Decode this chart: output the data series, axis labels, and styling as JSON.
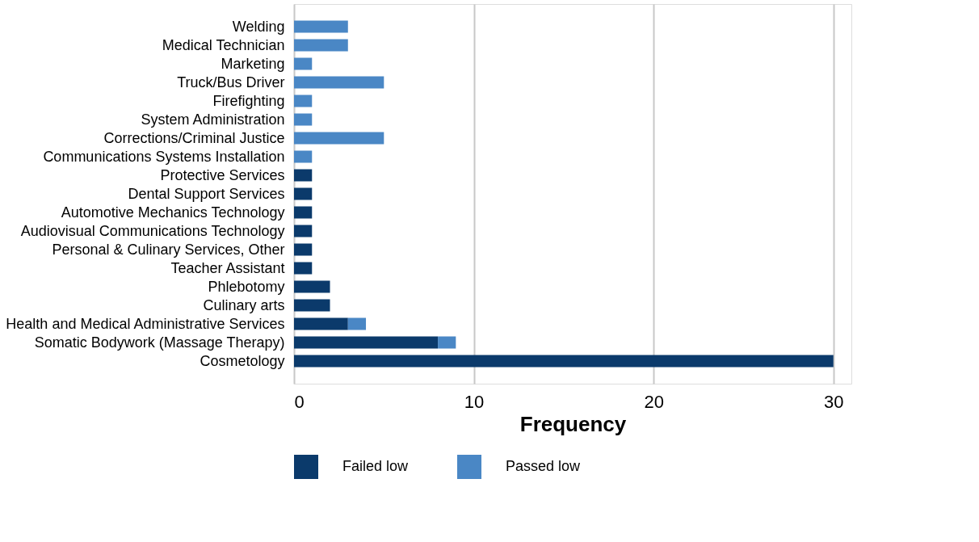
{
  "chart_data": {
    "type": "bar",
    "orientation": "horizontal",
    "stacked": true,
    "xlabel": "Frequency",
    "categories": [
      "Welding",
      "Medical Technician",
      "Marketing",
      "Truck/Bus Driver",
      "Firefighting",
      "System Administration",
      "Corrections/Criminal Justice",
      "Communications Systems Installation",
      "Protective Services",
      "Dental Support Services",
      "Automotive Mechanics Technology",
      "Audiovisual Communications Technology",
      "Personal & Culinary Services, Other",
      "Teacher Assistant",
      "Phlebotomy",
      "Culinary arts",
      "Health and Medical Administrative Services",
      "Somatic Bodywork (Massage Therapy)",
      "Cosmetology"
    ],
    "series": [
      {
        "name": "Failed low",
        "color": "#0b3a6b",
        "values": [
          0,
          0,
          0,
          0,
          0,
          0,
          0,
          0,
          1,
          1,
          1,
          1,
          1,
          1,
          2,
          2,
          3,
          8,
          30
        ]
      },
      {
        "name": "Passed low",
        "color": "#4a87c5",
        "values": [
          3,
          3,
          1,
          5,
          1,
          1,
          5,
          1,
          0,
          0,
          0,
          0,
          0,
          0,
          0,
          0,
          1,
          1,
          0
        ]
      }
    ],
    "xlim": [
      0,
      31
    ],
    "xticks": [
      0,
      10,
      20,
      30
    ],
    "grid": "x",
    "legend": "bottom"
  }
}
